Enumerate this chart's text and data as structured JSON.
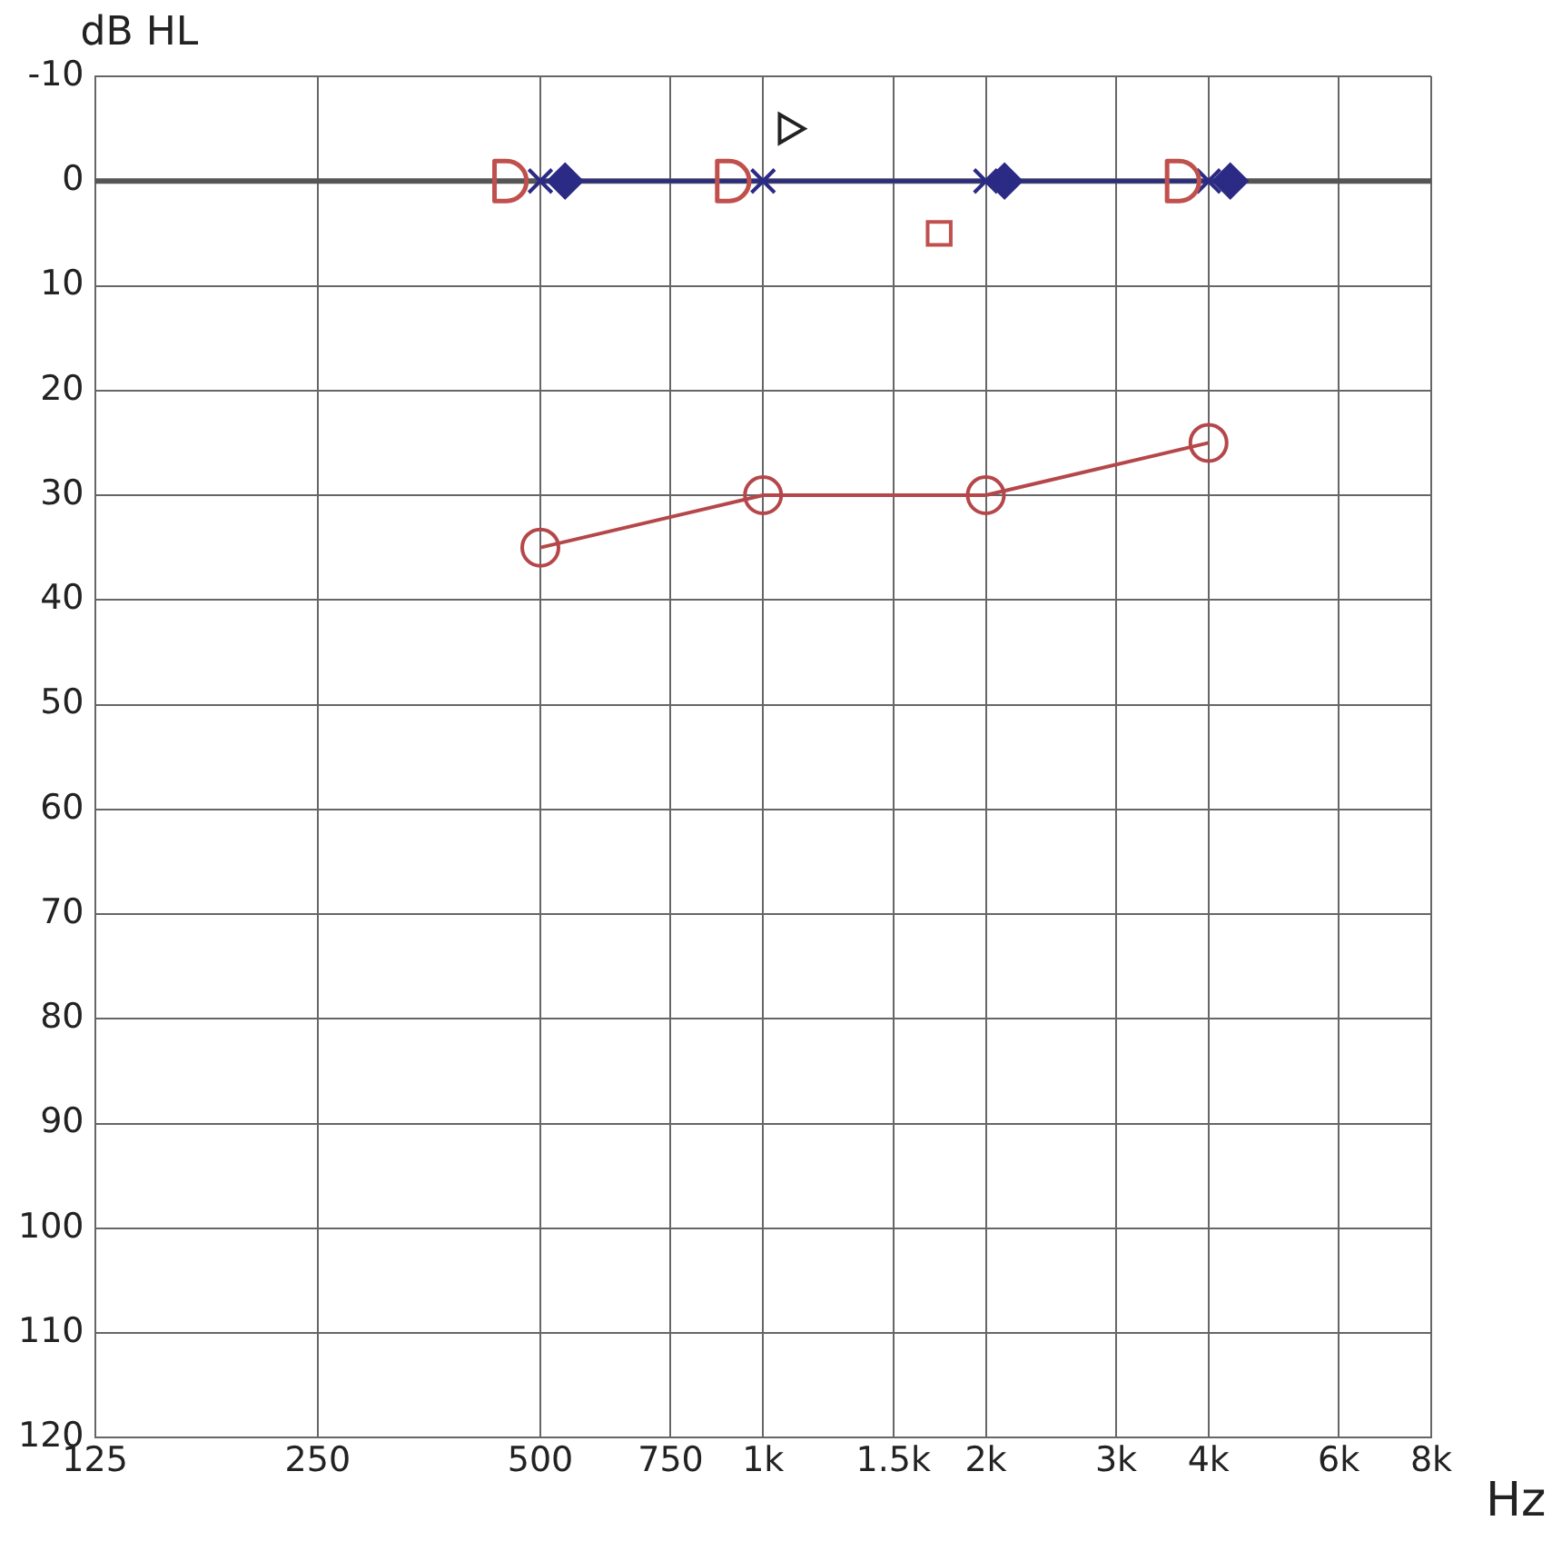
{
  "chart_data": {
    "type": "line",
    "xlabel": "Hz",
    "ylabel": "dB HL",
    "log": "x",
    "grid": true,
    "legend": false,
    "xlim": [
      125,
      8000
    ],
    "xticks": [
      125,
      250,
      500,
      750,
      {
        "value": 1000,
        "label": "1k"
      },
      {
        "value": 1500,
        "label": "1.5k"
      },
      {
        "value": 2000,
        "label": "2k"
      },
      {
        "value": 3000,
        "label": "3k"
      },
      {
        "value": 4000,
        "label": "4k"
      },
      {
        "value": 6000,
        "label": "6k"
      },
      {
        "value": 8000,
        "label": "8k"
      }
    ],
    "ylim": [
      120,
      -10
    ],
    "yticks": [
      -10,
      0,
      10,
      20,
      30,
      40,
      50,
      60,
      70,
      80,
      90,
      100,
      110,
      120
    ],
    "ref_lines": [
      {
        "axis": "y",
        "value": 0,
        "color": "#555555"
      }
    ],
    "series": [
      {
        "type": "line",
        "color": "#b5474a",
        "marker": "circle",
        "x": [
          500,
          1000,
          2000,
          4000
        ],
        "values": [
          35,
          30,
          30,
          25
        ]
      },
      {
        "type": "line",
        "color": "#2b2b85",
        "marker": "cross",
        "x": [
          500,
          1000,
          2000,
          4000
        ],
        "values": [
          0,
          0,
          0,
          0
        ]
      },
      {
        "type": "scatter",
        "color": "#2b2b85",
        "marker": "diamond",
        "x": [
          540,
          2120,
          4280
        ],
        "values": [
          0,
          0,
          0
        ]
      },
      {
        "type": "scatter",
        "color": "#c0504d",
        "marker": "half-circle",
        "x": [
          450,
          900,
          3650
        ],
        "values": [
          0,
          0,
          0
        ]
      },
      {
        "type": "scatter",
        "color": "#222222",
        "marker": "triangle",
        "x": [
          1080
        ],
        "values": [
          -5
        ]
      },
      {
        "type": "scatter",
        "color": "#c0504d",
        "marker": "square",
        "x": [
          1730
        ],
        "values": [
          5
        ]
      }
    ]
  }
}
